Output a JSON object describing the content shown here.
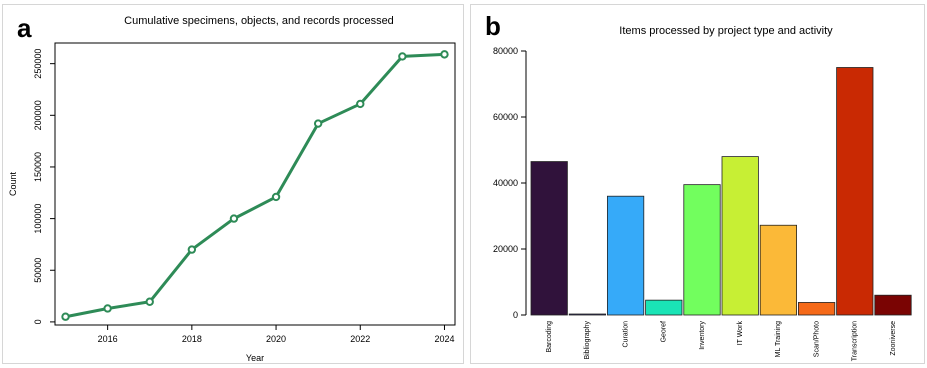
{
  "panels": [
    {
      "letter": "a"
    },
    {
      "letter": "b"
    }
  ],
  "chart_data": [
    {
      "type": "line",
      "title": "Cumulative specimens, objects, and records processed",
      "xlabel": "Year",
      "ylabel": "Count",
      "x": [
        2015,
        2016,
        2017,
        2018,
        2019,
        2020,
        2021,
        2022,
        2023,
        2024
      ],
      "series": [
        {
          "values": [
            5000,
            13000,
            19500,
            70000,
            100000,
            121000,
            192000,
            211000,
            257000,
            259000
          ]
        }
      ],
      "xlim": [
        2014.75,
        2024.25
      ],
      "ylim": [
        -3000,
        270000
      ],
      "xticks": [
        "2016",
        "2018",
        "2020",
        "2022",
        "2024"
      ],
      "yticks": [
        "0",
        "50000",
        "100000",
        "150000",
        "200000",
        "250000"
      ],
      "line_color": "#2e8b57",
      "grid": false
    },
    {
      "type": "bar",
      "title": "Items processed by project type and activity",
      "categories": [
        "Barcoding",
        "Bibliography",
        "Curation",
        "Georef",
        "Inventory",
        "IT Work",
        "ML Training",
        "Scan/Photo",
        "Transcription",
        "Zooniverse"
      ],
      "values": [
        46500,
        300,
        36000,
        4500,
        39500,
        48000,
        27200,
        3800,
        75000,
        6000
      ],
      "colors": [
        "#30123b",
        "#3f3e9c",
        "#36aaf9",
        "#1ae4b6",
        "#72fe5e",
        "#c7ef34",
        "#fbb938",
        "#f56918",
        "#c92903",
        "#7a0403"
      ],
      "ylim": [
        0,
        80000
      ],
      "yticks": [
        "0",
        "20000",
        "40000",
        "60000",
        "80000"
      ],
      "xlabel": "",
      "ylabel": "",
      "grid": false
    }
  ]
}
